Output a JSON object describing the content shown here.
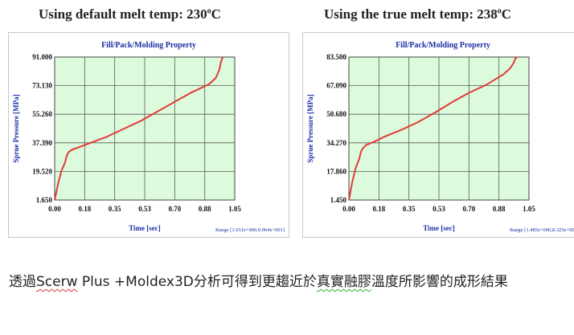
{
  "panels": [
    {
      "title_prefix": "Using default melt temp: 230",
      "title_sup": "o",
      "title_suffix": "C"
    },
    {
      "title_prefix": "Using the true melt temp: 238",
      "title_sup": "o",
      "title_suffix": "C"
    }
  ],
  "caption": {
    "part1": "透過",
    "part2": "Scerw",
    "part3": " Plus +Moldex3D分析可得到更趨近於",
    "part4": "真實融膠",
    "part5": "溫度所影響的成形結果"
  },
  "chart_data": [
    {
      "type": "line",
      "title": "Fill/Pack/Molding Property",
      "xlabel": "Time [sec]",
      "ylabel": "Sprue Pressure [MPa]",
      "xlim": [
        0,
        1.05
      ],
      "ylim": [
        1.65,
        91.0
      ],
      "x_ticks": [
        "0.00",
        "0.18",
        "0.35",
        "0.53",
        "0.70",
        "0.88",
        "1.05"
      ],
      "y_ticks": [
        "1.650",
        "19.520",
        "37.390",
        "55.260",
        "73.130",
        "91.000"
      ],
      "range_label": "Range [1.651e+000,9.064e+001]",
      "series": [
        {
          "x": [
            0.0,
            0.02,
            0.04,
            0.06,
            0.07,
            0.08,
            0.1,
            0.15,
            0.2,
            0.3,
            0.4,
            0.5,
            0.6,
            0.7,
            0.8,
            0.9,
            0.94,
            0.96,
            0.97,
            0.98
          ],
          "y": [
            1.65,
            12.0,
            20.0,
            25.0,
            29.0,
            31.5,
            33.0,
            35.0,
            37.0,
            41.0,
            46.0,
            51.0,
            57.0,
            63.0,
            69.0,
            74.0,
            78.0,
            83.0,
            88.0,
            91.0
          ],
          "color": "#e23a3a"
        }
      ]
    },
    {
      "type": "line",
      "title": "Fill/Pack/Molding Property",
      "xlabel": "Time [sec]",
      "ylabel": "Sprue Pressure [MPa]",
      "xlim": [
        0,
        1.05
      ],
      "ylim": [
        1.45,
        83.5
      ],
      "x_ticks": [
        "0.00",
        "0.18",
        "0.35",
        "0.53",
        "0.70",
        "0.88",
        "1.05"
      ],
      "y_ticks": [
        "1.450",
        "17.860",
        "34.270",
        "50.680",
        "67.090",
        "83.500"
      ],
      "range_label": "Range [1.485e+000,8.325e+001]",
      "series": [
        {
          "x": [
            0.0,
            0.02,
            0.04,
            0.06,
            0.07,
            0.08,
            0.1,
            0.15,
            0.2,
            0.3,
            0.4,
            0.5,
            0.6,
            0.7,
            0.8,
            0.9,
            0.94,
            0.96,
            0.97,
            0.98
          ],
          "y": [
            1.45,
            12.0,
            20.0,
            25.0,
            29.0,
            31.0,
            33.0,
            35.0,
            37.5,
            41.5,
            46.0,
            51.5,
            57.5,
            63.0,
            67.5,
            73.5,
            77.0,
            80.0,
            82.5,
            83.5
          ],
          "color": "#e23a3a"
        }
      ]
    }
  ]
}
